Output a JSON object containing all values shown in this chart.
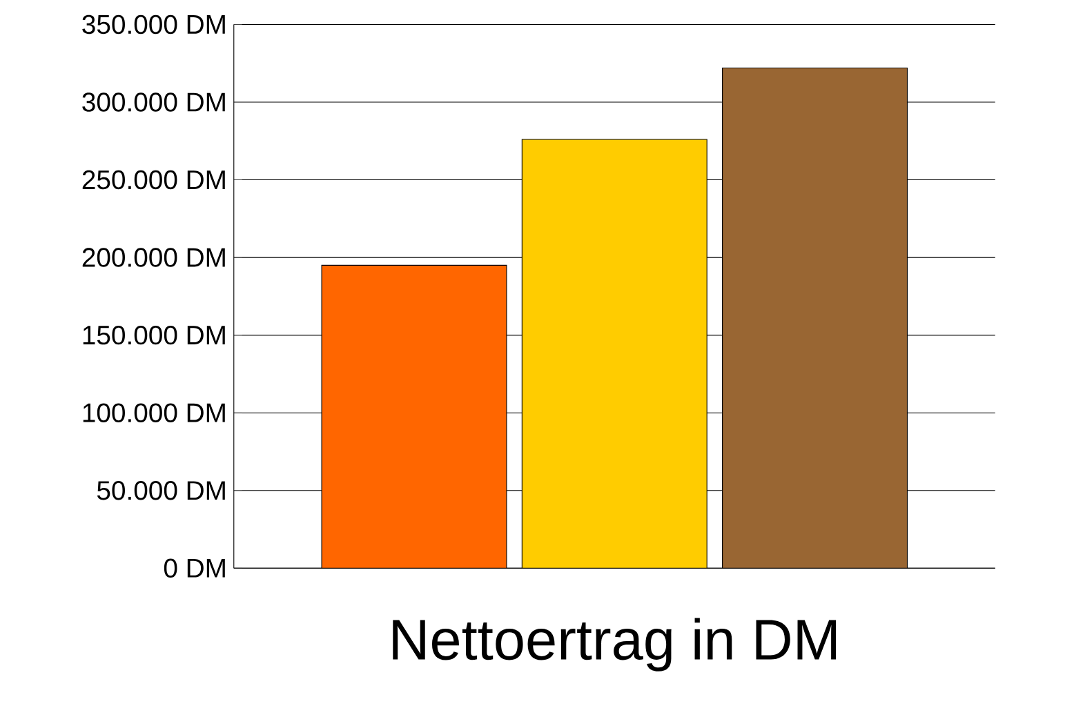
{
  "chart_data": {
    "type": "bar",
    "xlabel": "Nettoertrag in DM",
    "categories": [
      null,
      null,
      null
    ],
    "values": [
      195000,
      276000,
      322000
    ],
    "colors": [
      "#ff6600",
      "#ffcc00",
      "#996633"
    ],
    "ylim": [
      0,
      350000
    ],
    "yticks": [
      {
        "value": 0,
        "label": "0 DM"
      },
      {
        "value": 50000,
        "label": "50.000 DM"
      },
      {
        "value": 100000,
        "label": "100.000 DM"
      },
      {
        "value": 150000,
        "label": "150.000 DM"
      },
      {
        "value": 200000,
        "label": "200.000 DM"
      },
      {
        "value": 250000,
        "label": "250.000 DM"
      },
      {
        "value": 300000,
        "label": "300.000 DM"
      },
      {
        "value": 350000,
        "label": "350.000 DM"
      }
    ],
    "grid": "y"
  }
}
